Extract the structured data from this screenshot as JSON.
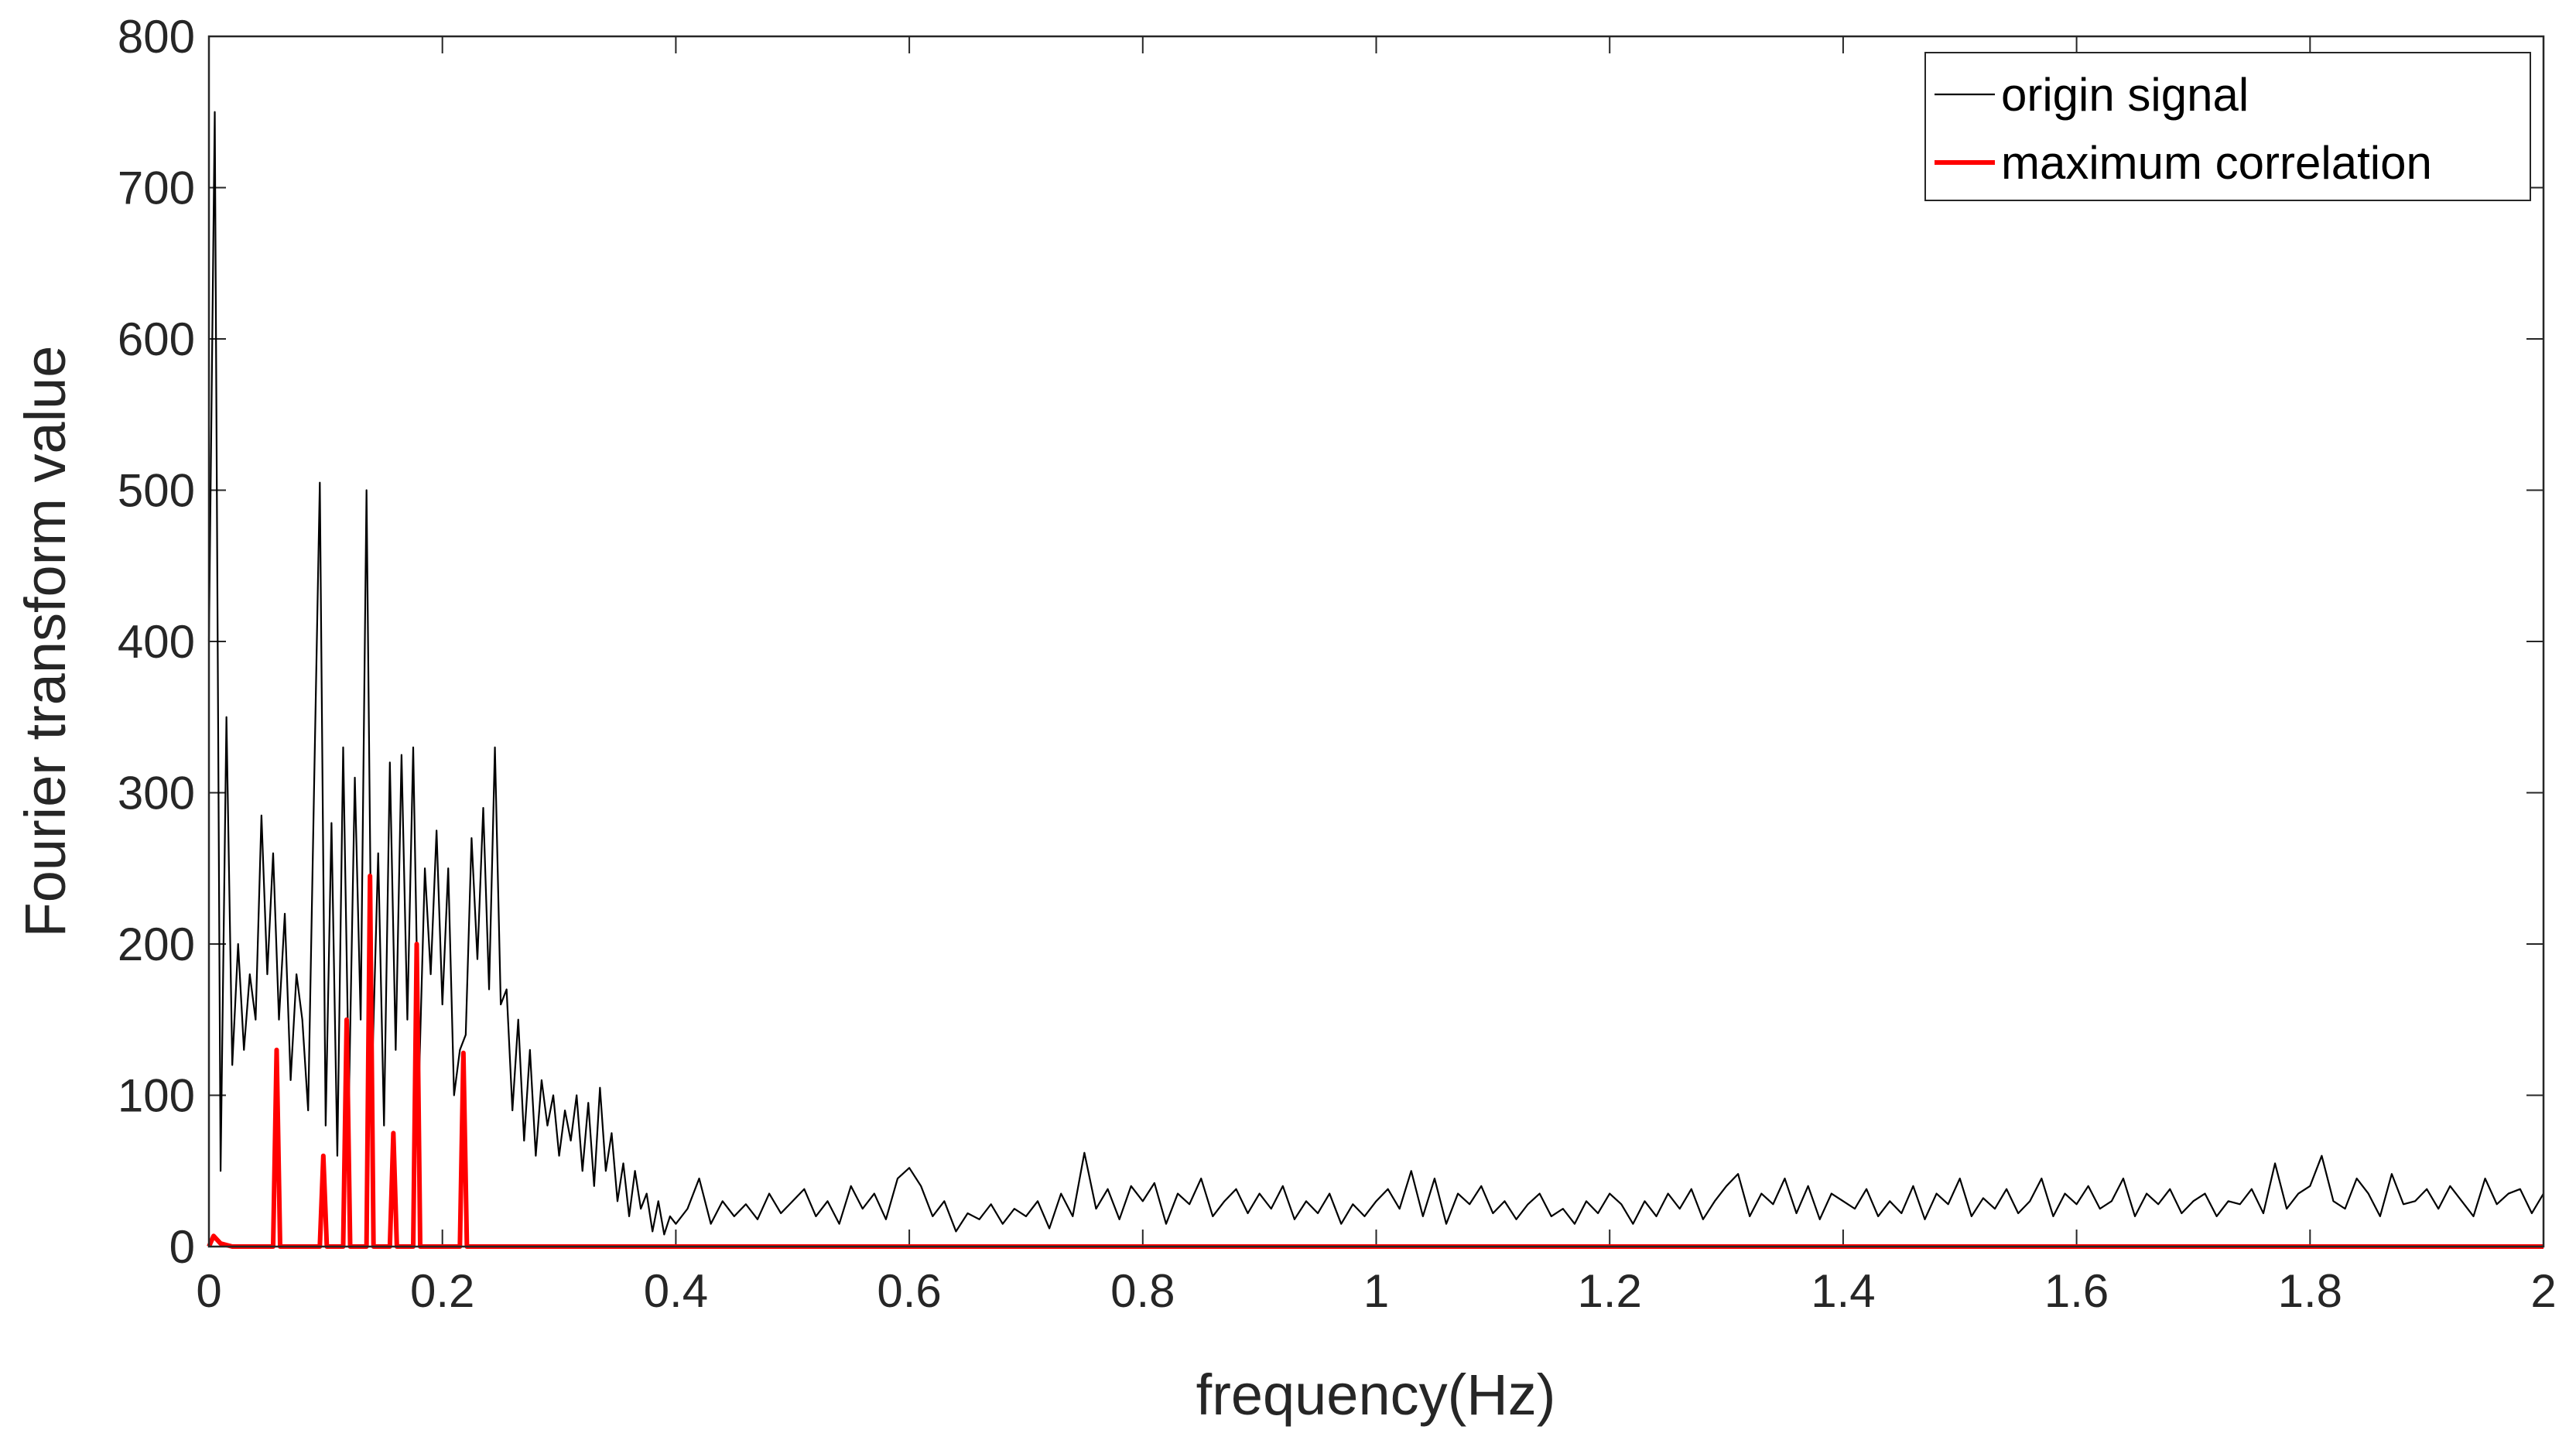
{
  "chart_data": {
    "type": "line",
    "xlabel": "frequency(Hz)",
    "ylabel": "Fourier transform value",
    "xlim": [
      0,
      2
    ],
    "xticks": [
      0,
      0.2,
      0.4,
      0.6,
      0.8,
      1,
      1.2,
      1.4,
      1.6,
      1.8,
      2
    ],
    "ylim": [
      0,
      800
    ],
    "yticks": [
      0,
      100,
      200,
      300,
      400,
      500,
      600,
      700,
      800
    ],
    "legend": "upper right",
    "series": [
      {
        "name": "origin signal",
        "color": "#000000",
        "x": [
          0,
          0.005,
          0.01,
          0.015,
          0.02,
          0.025,
          0.03,
          0.035,
          0.04,
          0.045,
          0.05,
          0.055,
          0.06,
          0.065,
          0.07,
          0.075,
          0.08,
          0.085,
          0.09,
          0.095,
          0.1,
          0.105,
          0.11,
          0.115,
          0.12,
          0.125,
          0.13,
          0.135,
          0.14,
          0.145,
          0.15,
          0.155,
          0.16,
          0.165,
          0.17,
          0.175,
          0.18,
          0.185,
          0.19,
          0.195,
          0.2,
          0.205,
          0.21,
          0.215,
          0.22,
          0.225,
          0.23,
          0.235,
          0.24,
          0.245,
          0.25,
          0.255,
          0.26,
          0.265,
          0.27,
          0.275,
          0.28,
          0.285,
          0.29,
          0.295,
          0.3,
          0.305,
          0.31,
          0.315,
          0.32,
          0.325,
          0.33,
          0.335,
          0.34,
          0.345,
          0.35,
          0.355,
          0.36,
          0.365,
          0.37,
          0.375,
          0.38,
          0.385,
          0.39,
          0.395,
          0.4,
          0.41,
          0.42,
          0.43,
          0.44,
          0.45,
          0.46,
          0.47,
          0.48,
          0.49,
          0.5,
          0.51,
          0.52,
          0.53,
          0.54,
          0.55,
          0.56,
          0.57,
          0.58,
          0.59,
          0.6,
          0.61,
          0.62,
          0.63,
          0.64,
          0.65,
          0.66,
          0.67,
          0.68,
          0.69,
          0.7,
          0.71,
          0.72,
          0.73,
          0.74,
          0.75,
          0.76,
          0.77,
          0.78,
          0.79,
          0.8,
          0.81,
          0.82,
          0.83,
          0.84,
          0.85,
          0.86,
          0.87,
          0.88,
          0.89,
          0.9,
          0.91,
          0.92,
          0.93,
          0.94,
          0.95,
          0.96,
          0.97,
          0.98,
          0.99,
          1,
          1.01,
          1.02,
          1.03,
          1.04,
          1.05,
          1.06,
          1.07,
          1.08,
          1.09,
          1.1,
          1.11,
          1.12,
          1.13,
          1.14,
          1.15,
          1.16,
          1.17,
          1.18,
          1.19,
          1.2,
          1.21,
          1.22,
          1.23,
          1.24,
          1.25,
          1.26,
          1.27,
          1.28,
          1.29,
          1.3,
          1.31,
          1.32,
          1.33,
          1.34,
          1.35,
          1.36,
          1.37,
          1.38,
          1.39,
          1.4,
          1.41,
          1.42,
          1.43,
          1.44,
          1.45,
          1.46,
          1.47,
          1.48,
          1.49,
          1.5,
          1.51,
          1.52,
          1.53,
          1.54,
          1.55,
          1.56,
          1.57,
          1.58,
          1.59,
          1.6,
          1.61,
          1.62,
          1.63,
          1.64,
          1.65,
          1.66,
          1.67,
          1.68,
          1.69,
          1.7,
          1.71,
          1.72,
          1.73,
          1.74,
          1.75,
          1.76,
          1.77,
          1.78,
          1.79,
          1.8,
          1.81,
          1.82,
          1.83,
          1.84,
          1.85,
          1.86,
          1.87,
          1.88,
          1.89,
          1.9,
          1.91,
          1.92,
          1.93,
          1.94,
          1.95,
          1.96,
          1.97,
          1.98,
          1.99,
          2
        ],
        "values": [
          400,
          750,
          50,
          350,
          120,
          200,
          130,
          180,
          150,
          285,
          180,
          260,
          150,
          220,
          110,
          180,
          150,
          90,
          300,
          505,
          80,
          280,
          60,
          330,
          100,
          310,
          150,
          500,
          120,
          260,
          80,
          320,
          130,
          325,
          150,
          330,
          110,
          250,
          180,
          275,
          160,
          250,
          100,
          130,
          140,
          270,
          190,
          290,
          170,
          330,
          160,
          170,
          90,
          150,
          70,
          130,
          60,
          110,
          80,
          100,
          60,
          90,
          70,
          100,
          50,
          95,
          40,
          105,
          50,
          75,
          30,
          55,
          20,
          50,
          25,
          35,
          10,
          30,
          8,
          20,
          15,
          25,
          45,
          15,
          30,
          20,
          28,
          18,
          35,
          22,
          30,
          38,
          20,
          30,
          15,
          40,
          25,
          35,
          18,
          45,
          52,
          40,
          20,
          30,
          10,
          22,
          18,
          28,
          15,
          25,
          20,
          30,
          12,
          35,
          20,
          62,
          25,
          38,
          18,
          40,
          30,
          42,
          15,
          35,
          28,
          45,
          20,
          30,
          38,
          22,
          35,
          25,
          40,
          18,
          30,
          22,
          35,
          15,
          28,
          20,
          30,
          38,
          25,
          50,
          20,
          45,
          15,
          35,
          28,
          40,
          22,
          30,
          18,
          28,
          35,
          20,
          25,
          15,
          30,
          22,
          35,
          28,
          15,
          30,
          20,
          35,
          25,
          38,
          18,
          30,
          40,
          48,
          20,
          35,
          28,
          45,
          22,
          40,
          18,
          35,
          30,
          25,
          38,
          20,
          30,
          22,
          40,
          18,
          35,
          28,
          45,
          20,
          32,
          25,
          38,
          22,
          30,
          45,
          20,
          35,
          28,
          40,
          25,
          30,
          45,
          20,
          35,
          28,
          38,
          22,
          30,
          35,
          20,
          30,
          28,
          38,
          22,
          55,
          25,
          35,
          40,
          60,
          30,
          25,
          45,
          35,
          20,
          48,
          28,
          30,
          38,
          25,
          40,
          30,
          20,
          45,
          28,
          35,
          38,
          22,
          35
        ]
      },
      {
        "name": "maximum correlation",
        "color": "#ff0000",
        "x": [
          0,
          0.004,
          0.01,
          0.02,
          0.055,
          0.058,
          0.061,
          0.095,
          0.098,
          0.101,
          0.115,
          0.118,
          0.121,
          0.135,
          0.138,
          0.141,
          0.155,
          0.158,
          0.161,
          0.175,
          0.178,
          0.181,
          0.215,
          0.218,
          0.221,
          2
        ],
        "values": [
          0,
          7,
          2,
          0,
          0,
          130,
          0,
          0,
          60,
          0,
          0,
          150,
          0,
          0,
          245,
          0,
          0,
          75,
          0,
          0,
          200,
          0,
          0,
          128,
          0,
          0
        ]
      }
    ]
  }
}
